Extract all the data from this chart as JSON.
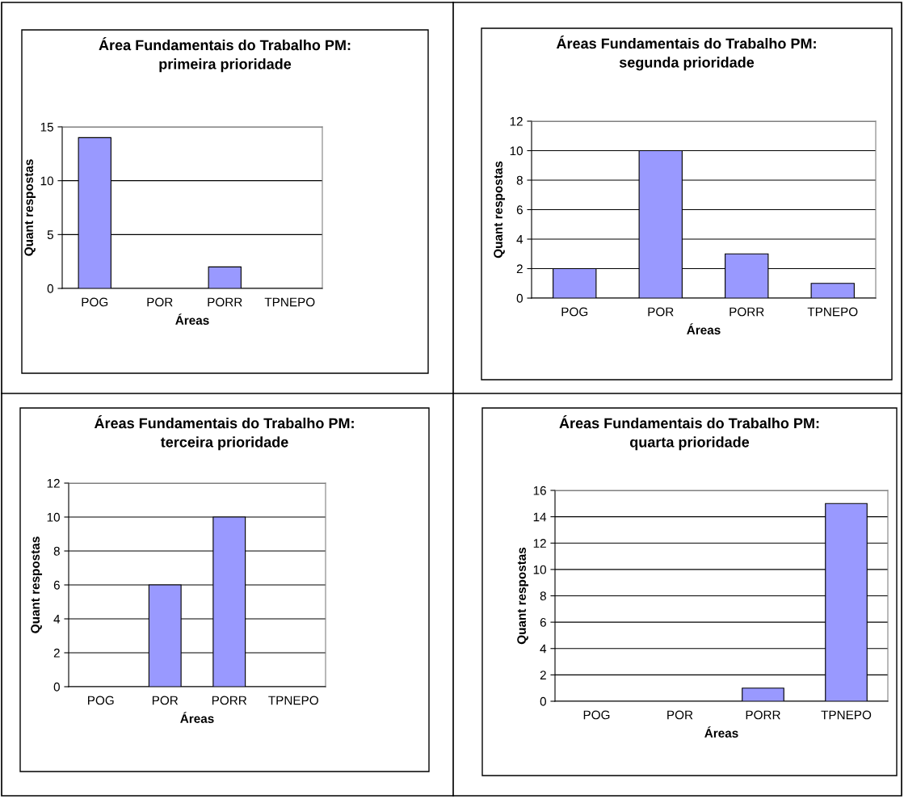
{
  "chart_data": [
    {
      "type": "bar",
      "title": "Área Fundamentais do Trabalho PM:\nprimeira prioridade",
      "xlabel": "Áreas",
      "ylabel": "Quant respostas",
      "categories": [
        "POG",
        "POR",
        "PORR",
        "TPNEPO"
      ],
      "values": [
        14,
        0,
        2,
        0
      ],
      "color": "#9999ff",
      "ylim": [
        0,
        15
      ],
      "yticks": [
        0,
        5,
        10,
        15
      ],
      "grid": "y",
      "legend": false
    },
    {
      "type": "bar",
      "title": "Áreas Fundamentais do Trabalho PM:\nsegunda prioridade",
      "xlabel": "Áreas",
      "ylabel": "Quant respostas",
      "categories": [
        "POG",
        "POR",
        "PORR",
        "TPNEPO"
      ],
      "values": [
        2,
        10,
        3,
        1
      ],
      "color": "#9999ff",
      "ylim": [
        0,
        12
      ],
      "yticks": [
        0,
        2,
        4,
        6,
        8,
        10,
        12
      ],
      "grid": "y",
      "legend": false
    },
    {
      "type": "bar",
      "title": "Áreas Fundamentais do Trabalho PM:\nterceira prioridade",
      "xlabel": "Áreas",
      "ylabel": "Quant respostas",
      "categories": [
        "POG",
        "POR",
        "PORR",
        "TPNEPO"
      ],
      "values": [
        0,
        6,
        10,
        0
      ],
      "color": "#9999ff",
      "ylim": [
        0,
        12
      ],
      "yticks": [
        0,
        2,
        4,
        6,
        8,
        10,
        12
      ],
      "grid": "y",
      "legend": false
    },
    {
      "type": "bar",
      "title": "Áreas Fundamentais do Trabalho PM:\nquarta prioridade",
      "xlabel": "Áreas",
      "ylabel": "Quant respostas",
      "categories": [
        "POG",
        "POR",
        "PORR",
        "TPNEPO"
      ],
      "values": [
        0,
        0,
        1,
        15
      ],
      "color": "#9999ff",
      "ylim": [
        0,
        16
      ],
      "yticks": [
        0,
        2,
        4,
        6,
        8,
        10,
        12,
        14,
        16
      ],
      "grid": "y",
      "legend": false
    }
  ]
}
